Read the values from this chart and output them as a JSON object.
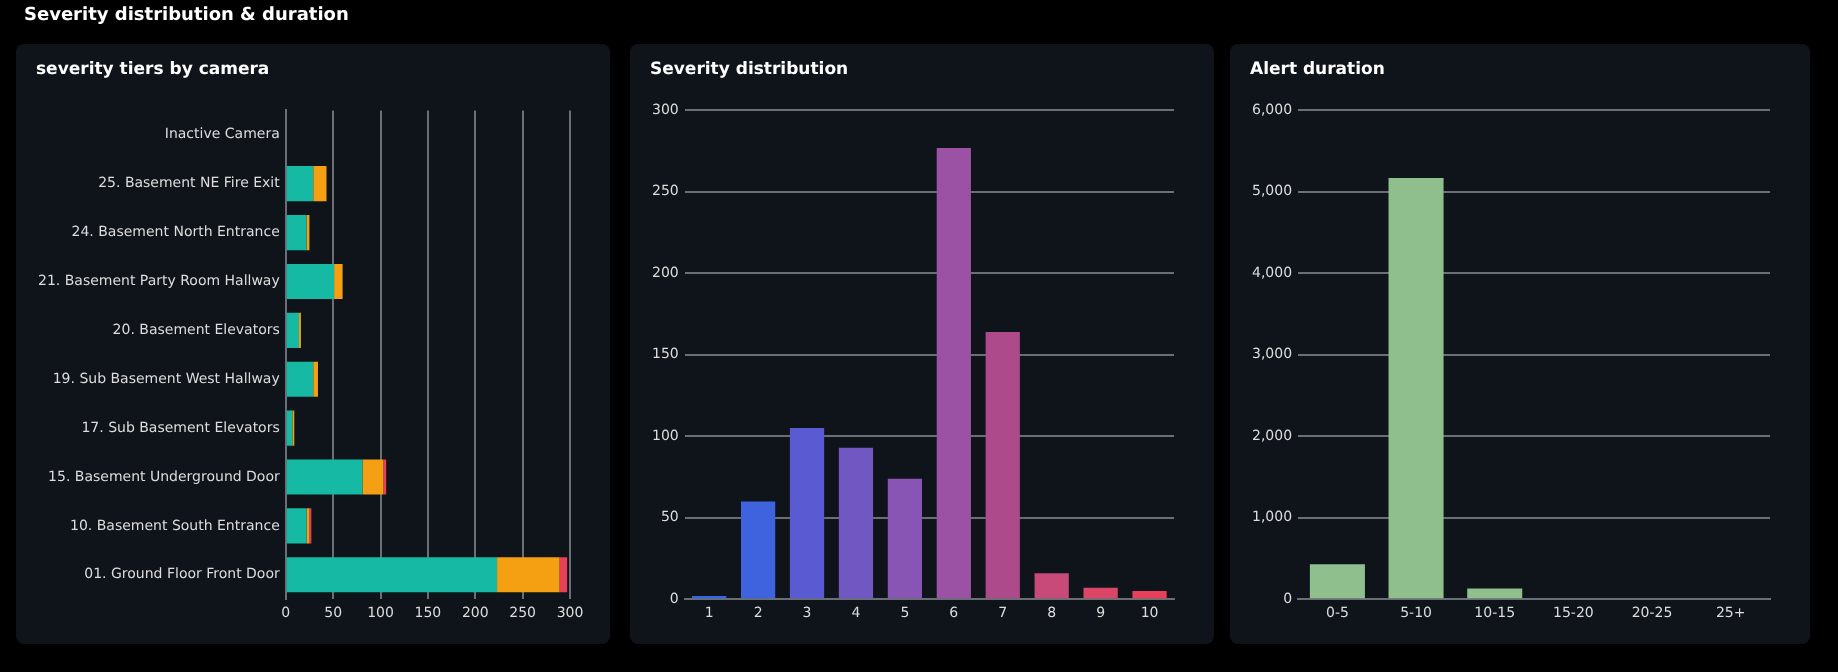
{
  "chart_data": [
    {
      "type": "bar",
      "title": "severity tiers by camera",
      "annotations": [
        "Severity distribution & duration"
      ],
      "orientation": "horizontal",
      "stacked": true,
      "grid": "x",
      "categories": [
        "Inactive Camera",
        "25. Basement NE Fire Exit",
        "24. Basement North Entrance",
        "21. Basement Party Room Hallway",
        "20. Basement Elevators",
        "19. Sub Basement West Hallway",
        "17. Sub Basement Elevators",
        "15. Basement Underground Door",
        "10. Basement South Entrance",
        "01. Ground Floor Front Door"
      ],
      "series": [
        {
          "color": "#16b9a4",
          "values": [
            null,
            29,
            22,
            51,
            14,
            29,
            7,
            81,
            22,
            223
          ]
        },
        {
          "color": "#f5a012",
          "values": [
            null,
            14,
            3,
            9,
            2,
            5,
            2,
            22,
            3,
            66
          ]
        },
        {
          "color": "#e8405a",
          "values": [
            null,
            null,
            null,
            null,
            null,
            null,
            null,
            3,
            2,
            8
          ]
        }
      ],
      "xlim": [
        0,
        300
      ],
      "xticks": [
        0,
        50,
        100,
        150,
        200,
        250,
        300
      ]
    },
    {
      "type": "bar",
      "title": "Severity distribution",
      "grid": "y",
      "categories": [
        "1",
        "2",
        "3",
        "4",
        "5",
        "6",
        "7",
        "8",
        "9",
        "10"
      ],
      "values": [
        2,
        60,
        105,
        93,
        74,
        277,
        164,
        16,
        7,
        5
      ],
      "colors": [
        "#3366e6",
        "#3f62df",
        "#5a5bd2",
        "#7057c2",
        "#8955b4",
        "#9b51a4",
        "#ad4a8c",
        "#c74a78",
        "#d94666",
        "#e8405a"
      ],
      "ylim": [
        0,
        300
      ],
      "yticks": [
        0,
        50,
        100,
        150,
        200,
        250,
        300
      ]
    },
    {
      "type": "bar",
      "title": "Alert duration",
      "grid": "y",
      "categories": [
        "0-5",
        "5-10",
        "10-15",
        "15-20",
        "20-25",
        "25+"
      ],
      "values": [
        430,
        5170,
        130,
        0,
        0,
        0
      ],
      "color": "#8fbf8c",
      "ylim": [
        0,
        6000
      ],
      "yticks": [
        {
          "value": 0,
          "label": "0"
        },
        {
          "value": 1000,
          "label": "1,000"
        },
        {
          "value": 2000,
          "label": "2,000"
        },
        {
          "value": 3000,
          "label": "3,000"
        },
        {
          "value": 4000,
          "label": "4,000"
        },
        {
          "value": 5000,
          "label": "5,000"
        },
        {
          "value": 6000,
          "label": "6,000"
        }
      ]
    }
  ]
}
